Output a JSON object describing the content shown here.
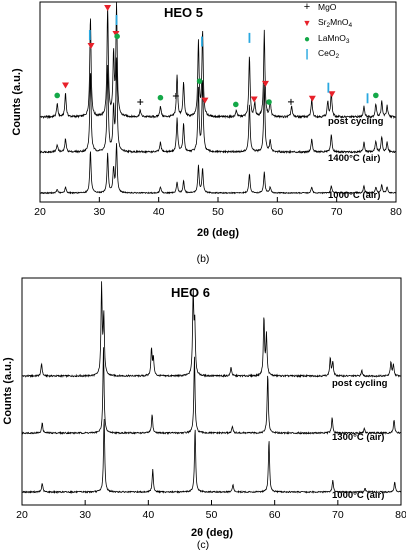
{
  "chart_data": [
    {
      "type": "line",
      "panel_label": "(b)",
      "title": "HEO 5",
      "xlabel": "2θ (deg)",
      "ylabel": "Counts (a.u.)",
      "xlim": [
        20,
        80
      ],
      "xticks": [
        "20",
        "30",
        "40",
        "50",
        "60",
        "70",
        "80"
      ],
      "legend": {
        "placement": "top-right",
        "entries": [
          {
            "symbol": "+",
            "label": "MgO",
            "color": "#000000"
          },
          {
            "symbol": "▼",
            "label": "Sr2MnO4",
            "label_main": "Sr",
            "label_sub1": "2",
            "label_mid": "MnO",
            "label_sub2": "4",
            "color": "#e8202a"
          },
          {
            "symbol": "●",
            "label": "LaMnO3",
            "label_main": "LaMnO",
            "label_sub1": "3",
            "color": "#14a848"
          },
          {
            "symbol": "|",
            "label": "CeO2",
            "label_main": "CeO",
            "label_sub1": "2",
            "color": "#29a8e0"
          }
        ]
      },
      "series": [
        {
          "label": "post cycling",
          "peaks": [
            [
              22.9,
              0.12
            ],
            [
              24.3,
              0.22
            ],
            [
              28.5,
              0.92
            ],
            [
              31.4,
              1.0
            ],
            [
              32.4,
              0.55
            ],
            [
              32.9,
              1.0
            ],
            [
              36.9,
              0.06
            ],
            [
              40.3,
              0.1
            ],
            [
              43.1,
              0.38
            ],
            [
              44.2,
              0.32
            ],
            [
              46.7,
              0.68
            ],
            [
              47.4,
              0.78
            ],
            [
              53.1,
              0.06
            ],
            [
              55.3,
              0.55
            ],
            [
              56.2,
              0.12
            ],
            [
              57.8,
              0.78
            ],
            [
              58.8,
              0.14
            ],
            [
              62.4,
              0.1
            ],
            [
              65.8,
              0.16
            ],
            [
              68.5,
              0.14
            ],
            [
              69.1,
              0.22
            ],
            [
              74.6,
              0.1
            ],
            [
              76.6,
              0.12
            ],
            [
              77.6,
              0.14
            ],
            [
              78.5,
              0.1
            ]
          ]
        },
        {
          "label": "1400°C (air)",
          "peaks": [
            [
              22.9,
              0.08
            ],
            [
              24.3,
              0.14
            ],
            [
              28.5,
              0.85
            ],
            [
              31.4,
              0.9
            ],
            [
              32.4,
              0.45
            ],
            [
              32.9,
              0.95
            ],
            [
              40.3,
              0.1
            ],
            [
              43.1,
              0.35
            ],
            [
              44.2,
              0.3
            ],
            [
              46.7,
              0.65
            ],
            [
              47.4,
              0.75
            ],
            [
              55.3,
              0.5
            ],
            [
              57.8,
              0.7
            ],
            [
              58.8,
              0.12
            ],
            [
              65.8,
              0.14
            ],
            [
              69.1,
              0.18
            ],
            [
              74.6,
              0.1
            ],
            [
              76.6,
              0.12
            ],
            [
              77.6,
              0.16
            ],
            [
              78.5,
              0.1
            ]
          ]
        },
        {
          "label": "1000°C (air)",
          "peaks": [
            [
              22.9,
              0.06
            ],
            [
              24.3,
              0.1
            ],
            [
              28.5,
              0.7
            ],
            [
              31.4,
              0.65
            ],
            [
              32.4,
              0.4
            ],
            [
              32.9,
              0.8
            ],
            [
              40.3,
              0.1
            ],
            [
              43.1,
              0.18
            ],
            [
              44.2,
              0.2
            ],
            [
              46.7,
              0.45
            ],
            [
              47.4,
              0.4
            ],
            [
              55.3,
              0.32
            ],
            [
              57.8,
              0.35
            ],
            [
              58.8,
              0.1
            ],
            [
              65.8,
              0.1
            ],
            [
              69.1,
              0.12
            ],
            [
              74.6,
              0.12
            ],
            [
              76.6,
              0.1
            ],
            [
              77.6,
              0.14
            ],
            [
              78.5,
              0.1
            ]
          ]
        }
      ],
      "markers": {
        "MgO": [
          36.9,
          42.9,
          62.3
        ],
        "Sr2MnO4": [
          24.3,
          28.6,
          31.4,
          32.8,
          47.8,
          56.1,
          58.0,
          65.9,
          69.2
        ],
        "LaMnO3": [
          22.9,
          33.0,
          40.3,
          46.9,
          53.0,
          58.6,
          76.6
        ],
        "CeO2": [
          28.4,
          32.9,
          47.3,
          55.3,
          68.6,
          75.2
        ]
      }
    },
    {
      "type": "line",
      "panel_label": "(c)",
      "title": "HEO 6",
      "xlabel": "2θ (deg)",
      "ylabel": "Counts (a.u.)",
      "xlim": [
        20,
        80
      ],
      "xticks": [
        "20",
        "30",
        "40",
        "50",
        "60",
        "70",
        "80"
      ],
      "series": [
        {
          "label": "post cycling",
          "peaks": [
            [
              23.1,
              0.14
            ],
            [
              32.6,
              1.0
            ],
            [
              32.95,
              0.65
            ],
            [
              40.5,
              0.3
            ],
            [
              40.8,
              0.2
            ],
            [
              47.1,
              0.9
            ],
            [
              47.35,
              0.55
            ],
            [
              53.1,
              0.1
            ],
            [
              58.3,
              0.65
            ],
            [
              58.7,
              0.45
            ],
            [
              68.8,
              0.2
            ],
            [
              69.2,
              0.16
            ],
            [
              73.8,
              0.06
            ],
            [
              78.4,
              0.16
            ],
            [
              78.8,
              0.12
            ]
          ]
        },
        {
          "label": "1300°C (air)",
          "peaks": [
            [
              23.2,
              0.12
            ],
            [
              32.9,
              1.0
            ],
            [
              40.6,
              0.22
            ],
            [
              47.3,
              0.9
            ],
            [
              53.3,
              0.08
            ],
            [
              58.9,
              0.7
            ],
            [
              69.1,
              0.18
            ],
            [
              74.2,
              0.05
            ],
            [
              78.9,
              0.16
            ]
          ]
        },
        {
          "label": "1000°C (air)",
          "peaks": [
            [
              23.2,
              0.12
            ],
            [
              33.0,
              1.0
            ],
            [
              40.7,
              0.3
            ],
            [
              47.4,
              0.85
            ],
            [
              53.4,
              0.1
            ],
            [
              59.1,
              0.7
            ],
            [
              69.2,
              0.16
            ],
            [
              74.3,
              0.05
            ],
            [
              79.0,
              0.14
            ]
          ]
        }
      ]
    }
  ]
}
